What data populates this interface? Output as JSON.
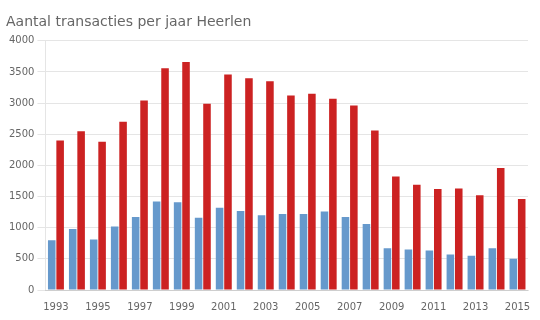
{
  "chart_data": {
    "type": "bar",
    "title": "Aantal transacties per jaar Heerlen",
    "categories": [
      "1993",
      null,
      "1995",
      null,
      "1997",
      null,
      "1999",
      null,
      "2001",
      null,
      "2003",
      null,
      "2005",
      null,
      "2007",
      null,
      "2009",
      null,
      "2011",
      null,
      "2013",
      null,
      "2015"
    ],
    "series": [
      {
        "color": "#6699cc",
        "values": [
          800,
          980,
          810,
          1020,
          1170,
          1420,
          1410,
          1160,
          1320,
          1270,
          1200,
          1220,
          1220,
          1260,
          1170,
          1060,
          670,
          650,
          635,
          570,
          550,
          670,
          500
        ]
      },
      {
        "color": "#cc2222",
        "values": [
          2400,
          2550,
          2380,
          2700,
          3040,
          3560,
          3660,
          2990,
          3460,
          3400,
          3350,
          3120,
          3150,
          3070,
          2960,
          2560,
          1820,
          1690,
          1620,
          1630,
          1520,
          1960,
          1460
        ]
      }
    ],
    "ylim": [
      0,
      4000
    ],
    "yticks": [
      0,
      500,
      1000,
      1500,
      2000,
      2500,
      3000,
      3500,
      4000
    ],
    "grid": true
  }
}
